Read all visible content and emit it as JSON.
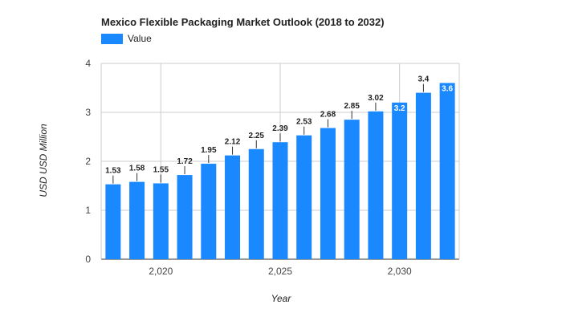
{
  "chart_data": {
    "type": "bar",
    "title": "Mexico Flexible Packaging Market Outlook (2018 to 2032)",
    "xlabel": "Year",
    "ylabel": "USD USD Million",
    "categories": [
      2018,
      2019,
      2020,
      2021,
      2022,
      2023,
      2024,
      2025,
      2026,
      2027,
      2028,
      2029,
      2030,
      2031,
      2032
    ],
    "x_tick_labels": [
      "2,020",
      "2,025",
      "2,030"
    ],
    "x_tick_values": [
      2020,
      2025,
      2030
    ],
    "series": [
      {
        "name": "Value",
        "color": "#1a88ff",
        "values": [
          1.53,
          1.58,
          1.55,
          1.72,
          1.95,
          2.12,
          2.25,
          2.39,
          2.53,
          2.68,
          2.85,
          3.02,
          3.2,
          3.4,
          3.6
        ]
      }
    ],
    "ylim": [
      0,
      4
    ],
    "y_ticks": [
      0,
      1,
      2,
      3,
      4
    ],
    "grid": true,
    "legend": "top-left",
    "labels_inside_bar_indices": [
      12,
      14
    ]
  }
}
